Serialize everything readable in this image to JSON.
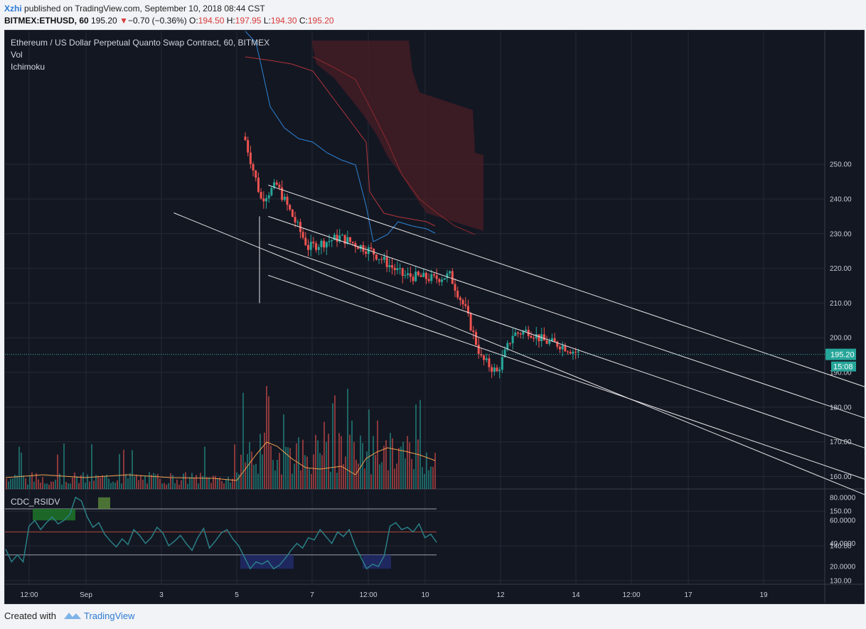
{
  "header": {
    "user": "Xzhi",
    "published_text": "published on TradingView.com, September 10, 2018 08:44 CST",
    "symbol": "BITMEX:ETHUSD, 60",
    "last": "195.20",
    "change": "−0.70 (−0.36%)",
    "o_label": "O:",
    "o_value": "194.50",
    "h_label": "H:",
    "h_value": "197.95",
    "l_label": "L:",
    "l_value": "194.30",
    "c_label": "C:",
    "c_value": "195.20"
  },
  "legend": {
    "title": "Ethereum / US Dollar Perpetual Quanto Swap Contract, 60, BITMEX",
    "vol": "Vol",
    "ichimoku": "Ichimoku",
    "rsi": "CDC_RSIDV"
  },
  "price_badge": {
    "value": "195.20",
    "countdown": "15:08"
  },
  "footer": {
    "created_with": "Created with",
    "brand": "TradingView"
  },
  "colors": {
    "background": "#131722",
    "up": "#26a69a",
    "down": "#ef5350",
    "cloud": "#4a1e25",
    "grid": "#262a35",
    "channel": "#e6e6e6"
  },
  "chart_data": {
    "type": "line",
    "title": "Ethereum / US Dollar Perpetual Quanto Swap Contract, 60, BITMEX",
    "price_axis": {
      "ticks": [
        "250.00",
        "240.00",
        "230.00",
        "220.00",
        "210.00",
        "200.00",
        "190.00",
        "180.00",
        "170.00",
        "160.00",
        "150.00",
        "140.00",
        "130.00"
      ],
      "ylim": [
        125,
        260
      ]
    },
    "rsi_axis": {
      "ticks": [
        "80.0000",
        "60.0000",
        "40.0000",
        "20.0000"
      ],
      "ylim": [
        7,
        85
      ],
      "levels": [
        70,
        50,
        30
      ]
    },
    "time_axis": {
      "ticks": [
        "12:00",
        "Sep",
        "3",
        "5",
        "7",
        "12:00",
        "10",
        "12",
        "14",
        "12:00",
        "17",
        "19"
      ]
    },
    "price_series": {
      "name": "ETHUSD",
      "x": [
        "Sep 5 00:00",
        "Sep 5 06:00",
        "Sep 5 12:00",
        "Sep 6 00:00",
        "Sep 6 12:00",
        "Sep 7 00:00",
        "Sep 7 12:00",
        "Sep 8 00:00",
        "Sep 8 06:00",
        "Sep 8 12:00",
        "Sep 8 18:00",
        "Sep 9 00:00",
        "Sep 9 06:00",
        "Sep 9 12:00",
        "Sep 9 18:00",
        "Sep 10 00:00",
        "Sep 10 08:00"
      ],
      "values": [
        257,
        240,
        244,
        226,
        229,
        225,
        218,
        217,
        218,
        208,
        194,
        190,
        201,
        202,
        199,
        198,
        195.2
      ]
    },
    "channel_lines": [
      {
        "from": [
          "Sep 5 12:00",
          244
        ],
        "to": [
          "Sep 20 12:00",
          152
        ]
      },
      {
        "from": [
          "Sep 5 12:00",
          235
        ],
        "to": [
          "Sep 20 12:00",
          143
        ]
      },
      {
        "from": [
          "Sep 5 12:00",
          227
        ],
        "to": [
          "Sep 20 12:00",
          134
        ]
      },
      {
        "from": [
          "Sep 5 12:00",
          218
        ],
        "to": [
          "Sep 20 12:00",
          125
        ]
      },
      {
        "from": [
          "Sep 4 00:00",
          236
        ],
        "to": [
          "Sep 19 00:00",
          125
        ]
      }
    ],
    "rsi_series": {
      "name": "CDC_RSIDV",
      "values": [
        35,
        24,
        30,
        24,
        55,
        60,
        52,
        58,
        63,
        57,
        60,
        65,
        80,
        77,
        63,
        54,
        58,
        48,
        42,
        37,
        44,
        39,
        52,
        47,
        40,
        45,
        54,
        49,
        38,
        42,
        47,
        40,
        34,
        45,
        53,
        36,
        42,
        49,
        52,
        44,
        38,
        28,
        18,
        24,
        22,
        25,
        18,
        21,
        27,
        34,
        40,
        36,
        45,
        43,
        52,
        46,
        40,
        50,
        46,
        52,
        38,
        28,
        18,
        22,
        20,
        29,
        55,
        58,
        52,
        54,
        50,
        57,
        45,
        48,
        41
      ]
    }
  }
}
